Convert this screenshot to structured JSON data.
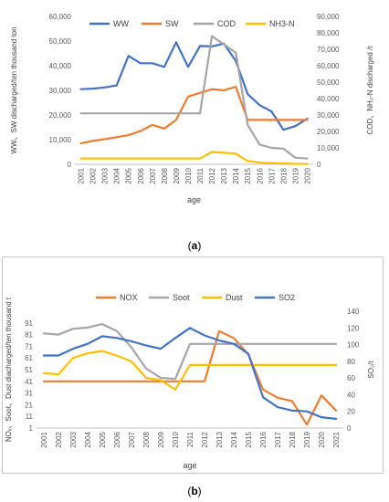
{
  "caption_a": "a",
  "caption_b": "b",
  "chart_data": [
    {
      "type": "line",
      "xlabel": "age",
      "ylabel_left": "WW、SW discharged/ten thousand ton",
      "ylabel_right": "COD、NH₃-N discharged /t",
      "ylim_left": [
        0,
        60000
      ],
      "ylim_right": [
        0,
        90000
      ],
      "yticks_left": [
        "0",
        "10,000",
        "20,000",
        "30,000",
        "40,000",
        "50,000",
        "60,000"
      ],
      "yticks_right": [
        "0",
        "10,000",
        "20,000",
        "30,000",
        "40,000",
        "50,000",
        "60,000",
        "70,000",
        "80,000",
        "90,000"
      ],
      "x": [
        "2001",
        "2002",
        "2003",
        "2004",
        "2005",
        "2006",
        "2007",
        "2008",
        "2009",
        "2010",
        "2011",
        "2012",
        "2013",
        "2014",
        "2015",
        "2016",
        "2017",
        "2018",
        "2019",
        "2020"
      ],
      "legend_position": "top",
      "grid": false,
      "series": [
        {
          "name": "WW",
          "axis": "left",
          "color": "#4472c4",
          "values": [
            30500,
            30700,
            31200,
            32000,
            44000,
            41000,
            41000,
            39500,
            49500,
            39500,
            48000,
            47800,
            49000,
            42000,
            28500,
            24000,
            21500,
            14000,
            15500,
            18500
          ]
        },
        {
          "name": "SW",
          "axis": "left",
          "color": "#ed7d31",
          "values": [
            8500,
            9500,
            10200,
            11000,
            11800,
            13500,
            16000,
            14500,
            18000,
            27500,
            29000,
            30500,
            30000,
            31500,
            18000,
            18000,
            18000,
            18000,
            18000,
            18000
          ]
        },
        {
          "name": "COD",
          "axis": "right",
          "color": "#a5a5a5",
          "values": [
            31000,
            31000,
            31000,
            31000,
            31000,
            31000,
            31000,
            31000,
            31000,
            31000,
            31000,
            78000,
            73000,
            68000,
            24000,
            12000,
            10000,
            9500,
            4000,
            3500
          ]
        },
        {
          "name": "NH3-N",
          "axis": "right",
          "color": "#ffc000",
          "values": [
            3500,
            3500,
            3500,
            3500,
            3500,
            3500,
            3500,
            3500,
            3500,
            3500,
            3500,
            7500,
            7000,
            6500,
            2000,
            1000,
            800,
            500,
            300,
            200
          ]
        }
      ]
    },
    {
      "type": "line",
      "xlabel": "age",
      "ylabel_left": "NOₓ、Soot、Dust diacharged/ten thousand t",
      "ylabel_right": "SO₂/t",
      "ylim_left": [
        1,
        101
      ],
      "ylim_right": [
        0,
        140
      ],
      "yticks_left": [
        "1",
        "11",
        "21",
        "31",
        "41",
        "51",
        "61",
        "71",
        "81",
        "91"
      ],
      "yticks_right": [
        "0",
        "20",
        "40",
        "60",
        "80",
        "100",
        "120",
        "140"
      ],
      "x": [
        "2001",
        "2002",
        "2003",
        "2004",
        "2005",
        "2006",
        "2007",
        "2008",
        "2009",
        "2010",
        "2011",
        "2012",
        "2013",
        "2014",
        "2015",
        "2016",
        "2017",
        "2018",
        "2019",
        "2020",
        "2021"
      ],
      "legend_position": "top",
      "grid": false,
      "series": [
        {
          "name": "NOX",
          "axis": "left",
          "color": "#ed7d31",
          "values": [
            41,
            41,
            41,
            41,
            41,
            41,
            41,
            41,
            41,
            41,
            41,
            41,
            84,
            78,
            64,
            34,
            27,
            24,
            4,
            29,
            16
          ]
        },
        {
          "name": "Soot",
          "axis": "left",
          "color": "#a5a5a5",
          "values": [
            82,
            81,
            86,
            87,
            90,
            84,
            70,
            52,
            44,
            43,
            73,
            73,
            73,
            73,
            73,
            73,
            73,
            73,
            73,
            73,
            73
          ]
        },
        {
          "name": "Dust",
          "axis": "left",
          "color": "#ffc000",
          "values": [
            48,
            47,
            61,
            65,
            67,
            63,
            58,
            44,
            42,
            34,
            55,
            55,
            55,
            55,
            55,
            55,
            55,
            55,
            55,
            55,
            55
          ]
        },
        {
          "name": "SO2",
          "axis": "right",
          "color": "#4472c4",
          "values": [
            87,
            87,
            95,
            101,
            110,
            108,
            104,
            99,
            95,
            108,
            120,
            111,
            105,
            101,
            89,
            37,
            25,
            21,
            20,
            13,
            11
          ]
        }
      ]
    }
  ]
}
